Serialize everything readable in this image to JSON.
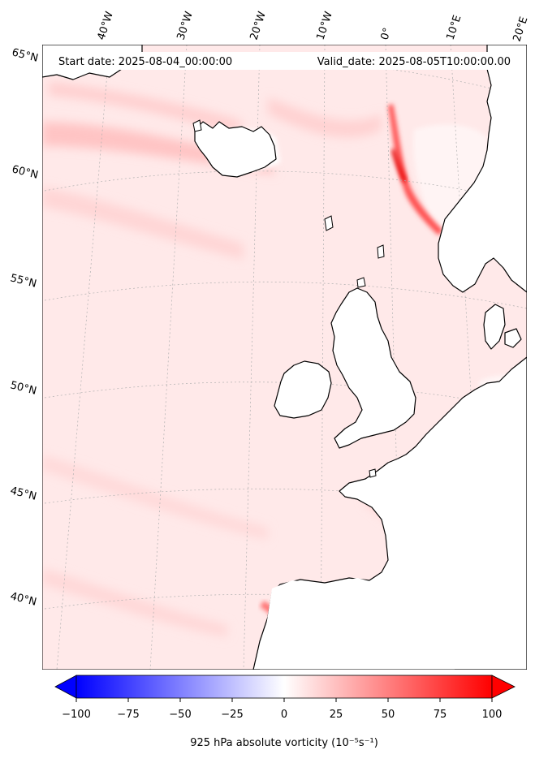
{
  "map": {
    "start_label": "Start date: 2025-08-04_00:00:00",
    "valid_label": "Valid_date: 2025-08-05T10:00:00.00",
    "lon_labels": [
      "40°W",
      "30°W",
      "20°W",
      "10°W",
      "0°",
      "10°E",
      "20°E"
    ],
    "lat_labels": [
      "65°N",
      "60°N",
      "55°N",
      "50°N",
      "45°N",
      "40°N"
    ],
    "field_colors": {
      "max_positive": "#ff0000",
      "max_negative": "#0000ff",
      "neutral": "#ffffff",
      "background_tint": "#ffe6e6"
    }
  },
  "colorbar": {
    "label": "925 hPa absolute vorticity (10⁻⁵s⁻¹)",
    "range": [
      -100,
      100
    ],
    "ticks": [
      "−100",
      "−75",
      "−50",
      "−25",
      "0",
      "25",
      "50",
      "75",
      "100"
    ],
    "extend": "both",
    "colormap": "bwr"
  }
}
